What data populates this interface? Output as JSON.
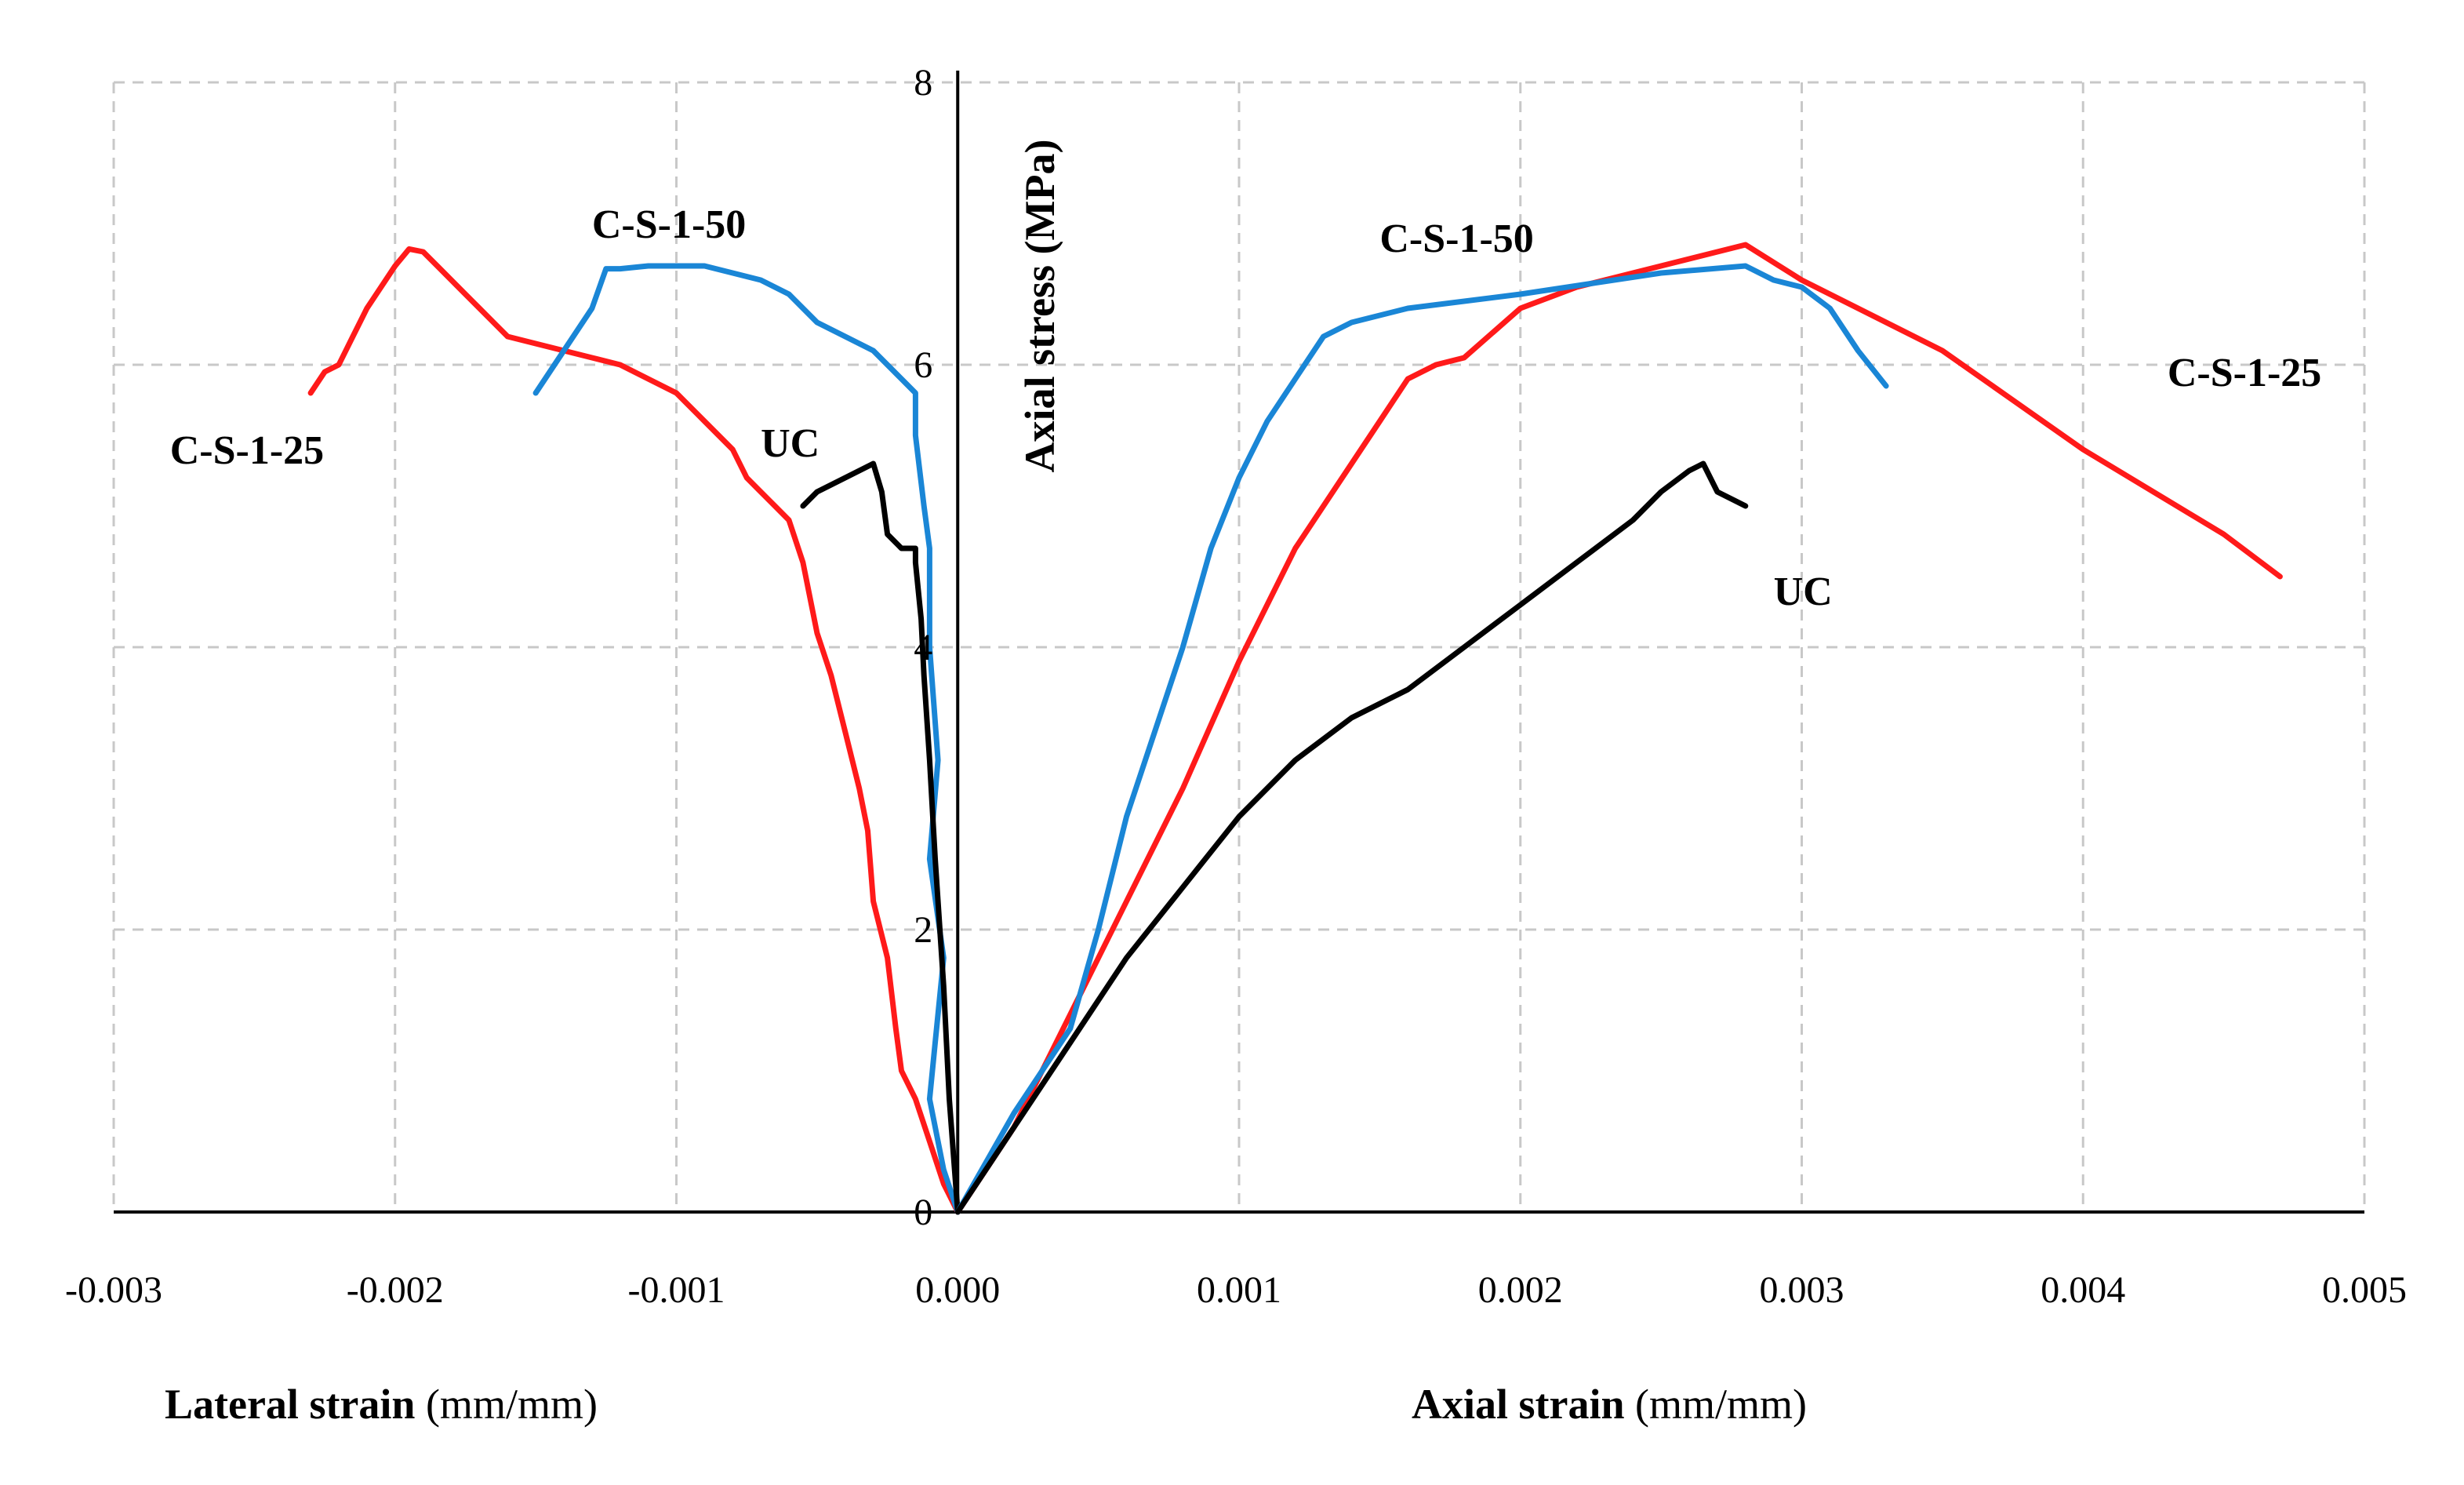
{
  "chart_data": {
    "type": "line",
    "title": "",
    "xlabel_left": {
      "bold": "Lateral strain",
      "unit": " (mm/mm)"
    },
    "xlabel_right": {
      "bold": "Axial strain",
      "unit": " (mm/mm)"
    },
    "ylabel": "Axial stress (MPa)",
    "xlim": [
      -0.003,
      0.005
    ],
    "ylim": [
      0,
      8
    ],
    "x_ticks": [
      -0.003,
      -0.002,
      -0.001,
      0.0,
      0.001,
      0.002,
      0.003,
      0.004,
      0.005
    ],
    "x_tick_labels": [
      "-0.003",
      "-0.002",
      "-0.001",
      "0.000",
      "0.001",
      "0.002",
      "0.003",
      "0.004",
      "0.005"
    ],
    "y_ticks": [
      0,
      2,
      4,
      6,
      8
    ],
    "y_tick_labels": [
      "0",
      "2",
      "4",
      "6",
      "8"
    ],
    "grid": true,
    "colors": {
      "C-S-1-25": "#ff1a1a",
      "C-S-1-50": "#1a86d6",
      "UC": "#000000"
    },
    "series": [
      {
        "name": "C-S-1-25",
        "side": "lateral",
        "color": "#ff1a1a",
        "x": [
          0.0,
          -5e-05,
          -0.0001,
          -0.00015,
          -0.0002,
          -0.00022,
          -0.00025,
          -0.0003,
          -0.00032,
          -0.00035,
          -0.0004,
          -0.00045,
          -0.0005,
          -0.00055,
          -0.0006,
          -0.00065,
          -0.0007,
          -0.00075,
          -0.0008,
          -0.0009,
          -0.001,
          -0.0011,
          -0.0012,
          -0.0013,
          -0.0014,
          -0.0015,
          -0.0016,
          -0.0017,
          -0.00175,
          -0.0018,
          -0.00185,
          -0.0019,
          -0.00195,
          -0.002,
          -0.0021,
          -0.00215,
          -0.0022,
          -0.00225,
          -0.0023
        ],
        "y": [
          0.0,
          0.2,
          0.5,
          0.8,
          1.0,
          1.3,
          1.8,
          2.2,
          2.7,
          3.0,
          3.4,
          3.8,
          4.1,
          4.6,
          4.9,
          5.0,
          5.1,
          5.2,
          5.4,
          5.6,
          5.8,
          5.9,
          6.0,
          6.05,
          6.1,
          6.15,
          6.2,
          6.4,
          6.5,
          6.6,
          6.7,
          6.8,
          6.82,
          6.7,
          6.4,
          6.2,
          6.0,
          5.95,
          5.8
        ]
      },
      {
        "name": "C-S-1-50",
        "side": "lateral",
        "color": "#1a86d6",
        "x": [
          0.0,
          -5e-05,
          -0.0001,
          -8e-05,
          -5e-05,
          -0.0001,
          -7e-05,
          -0.0001,
          -0.0001,
          -0.0001,
          -0.00012,
          -0.00015,
          -0.00015,
          -0.0002,
          -0.0003,
          -0.0004,
          -0.0005,
          -0.0006,
          -0.0007,
          -0.0008,
          -0.0009,
          -0.001,
          -0.0011,
          -0.0012,
          -0.00125,
          -0.0013,
          -0.0014,
          -0.0015
        ],
        "y": [
          0.0,
          0.3,
          0.8,
          1.2,
          1.8,
          2.5,
          3.2,
          4.0,
          4.5,
          4.7,
          5.0,
          5.5,
          5.8,
          5.9,
          6.1,
          6.2,
          6.3,
          6.5,
          6.6,
          6.65,
          6.7,
          6.7,
          6.7,
          6.68,
          6.68,
          6.4,
          6.1,
          5.8
        ]
      },
      {
        "name": "UC",
        "side": "lateral",
        "color": "#000000",
        "x": [
          0.0,
          -3e-05,
          -5e-05,
          -8e-05,
          -0.0001,
          -0.00012,
          -0.00013,
          -0.00015,
          -0.00015,
          -0.0002,
          -0.00025,
          -0.00027,
          -0.0003,
          -0.0004,
          -0.0005,
          -0.00055
        ],
        "y": [
          0.0,
          0.8,
          1.6,
          2.5,
          3.2,
          3.8,
          4.2,
          4.6,
          4.7,
          4.7,
          4.8,
          5.1,
          5.3,
          5.2,
          5.1,
          5.0
        ]
      },
      {
        "name": "C-S-1-25",
        "side": "axial",
        "color": "#ff1a1a",
        "x": [
          0.0,
          0.0002,
          0.0004,
          0.0006,
          0.0008,
          0.001,
          0.0012,
          0.0014,
          0.0015,
          0.0016,
          0.0017,
          0.0018,
          0.002,
          0.0022,
          0.0025,
          0.0028,
          0.003,
          0.0035,
          0.004,
          0.0045,
          0.0047
        ],
        "y": [
          0.0,
          0.6,
          1.4,
          2.2,
          3.0,
          3.9,
          4.7,
          5.3,
          5.6,
          5.9,
          6.0,
          6.05,
          6.4,
          6.55,
          6.7,
          6.85,
          6.6,
          6.1,
          5.4,
          4.8,
          4.5
        ]
      },
      {
        "name": "C-S-1-50",
        "side": "axial",
        "color": "#1a86d6",
        "x": [
          0.0,
          0.0002,
          0.0004,
          0.0005,
          0.0006,
          0.0007,
          0.0008,
          0.0009,
          0.001,
          0.0011,
          0.0012,
          0.0013,
          0.0014,
          0.0016,
          0.002,
          0.0025,
          0.0028,
          0.0029,
          0.003,
          0.0031,
          0.0032,
          0.0033
        ],
        "y": [
          0.0,
          0.7,
          1.3,
          2.0,
          2.8,
          3.4,
          4.0,
          4.7,
          5.2,
          5.6,
          5.9,
          6.2,
          6.3,
          6.4,
          6.5,
          6.65,
          6.7,
          6.6,
          6.55,
          6.4,
          6.1,
          5.85
        ]
      },
      {
        "name": "UC",
        "side": "axial",
        "color": "#000000",
        "x": [
          0.0,
          0.0002,
          0.0004,
          0.0006,
          0.0008,
          0.001,
          0.0012,
          0.0014,
          0.0016,
          0.0018,
          0.002,
          0.0022,
          0.0024,
          0.0025,
          0.0026,
          0.00265,
          0.0027,
          0.0028
        ],
        "y": [
          0.0,
          0.6,
          1.2,
          1.8,
          2.3,
          2.8,
          3.2,
          3.5,
          3.7,
          4.0,
          4.3,
          4.6,
          4.9,
          5.1,
          5.25,
          5.3,
          5.1,
          5.0
        ]
      }
    ],
    "annotations": [
      {
        "text": "C-S-1-25",
        "x": -0.0028,
        "y": 5.3
      },
      {
        "text": "C-S-1-50",
        "x": -0.0013,
        "y": 6.9
      },
      {
        "text": "UC",
        "x": -0.0007,
        "y": 5.35
      },
      {
        "text": "C-S-1-50",
        "x": 0.0015,
        "y": 6.8
      },
      {
        "text": "C-S-1-25",
        "x": 0.0043,
        "y": 5.85
      },
      {
        "text": "UC",
        "x": 0.0029,
        "y": 4.3
      }
    ]
  }
}
